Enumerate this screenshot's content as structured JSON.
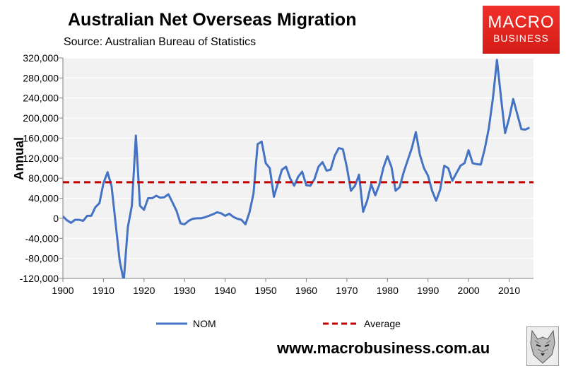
{
  "header": {
    "title": "Australian Net Overseas Migration",
    "subtitle": "Source: Australian Bureau of Statistics"
  },
  "brand": {
    "line1": "MACRO",
    "line2": "BUSINESS"
  },
  "footer": {
    "url": "www.macrobusiness.com.au"
  },
  "logo": {
    "icon": "wolf-head-icon"
  },
  "colors": {
    "series_line": "#4472C4",
    "average_line": "#C00000",
    "plot_bg": "#F2F2F2",
    "brand_bg": "#E8241E"
  },
  "chart_data": {
    "type": "line",
    "title": "Australian Net Overseas Migration",
    "subtitle": "Source: Australian Bureau of Statistics",
    "xlabel": "",
    "ylabel": "Annual",
    "xlim": [
      1900,
      2016
    ],
    "ylim": [
      -120000,
      320000
    ],
    "xticks": [
      1900,
      1910,
      1920,
      1930,
      1940,
      1950,
      1960,
      1970,
      1980,
      1990,
      2000,
      2010
    ],
    "xtick_labels": [
      "1900",
      "1910",
      "1920",
      "1930",
      "1940",
      "1950",
      "1960",
      "1970",
      "1980",
      "1990",
      "2000",
      "2010"
    ],
    "yticks": [
      -120000,
      -80000,
      -40000,
      0,
      40000,
      80000,
      120000,
      160000,
      200000,
      240000,
      280000,
      320000
    ],
    "ytick_labels": [
      "-120,000",
      "-80,000",
      "-40,000",
      "0",
      "40,000",
      "80,000",
      "120,000",
      "160,000",
      "200,000",
      "240,000",
      "280,000",
      "320,000"
    ],
    "grid": "horizontal",
    "legend_position": "bottom",
    "series": [
      {
        "name": "NOM",
        "style": "solid",
        "x": [
          1900,
          1901,
          1902,
          1903,
          1904,
          1905,
          1906,
          1907,
          1908,
          1909,
          1910,
          1911,
          1912,
          1913,
          1914,
          1915,
          1916,
          1917,
          1918,
          1919,
          1920,
          1921,
          1922,
          1923,
          1924,
          1925,
          1926,
          1927,
          1928,
          1929,
          1930,
          1931,
          1932,
          1933,
          1934,
          1935,
          1936,
          1937,
          1938,
          1939,
          1940,
          1941,
          1942,
          1943,
          1944,
          1945,
          1946,
          1947,
          1948,
          1949,
          1950,
          1951,
          1952,
          1953,
          1954,
          1955,
          1956,
          1957,
          1958,
          1959,
          1960,
          1961,
          1962,
          1963,
          1964,
          1965,
          1966,
          1967,
          1968,
          1969,
          1970,
          1971,
          1972,
          1973,
          1974,
          1975,
          1976,
          1977,
          1978,
          1979,
          1980,
          1981,
          1982,
          1983,
          1984,
          1985,
          1986,
          1987,
          1988,
          1989,
          1990,
          1991,
          1992,
          1993,
          1994,
          1995,
          1996,
          1997,
          1998,
          1999,
          2000,
          2001,
          2002,
          2003,
          2004,
          2005,
          2006,
          2007,
          2008,
          2009,
          2010,
          2011,
          2012,
          2013,
          2014,
          2015
        ],
        "values": [
          4000,
          -4000,
          -9000,
          -3000,
          -3000,
          -5000,
          5000,
          5000,
          22000,
          30000,
          70000,
          92000,
          64000,
          -10000,
          -85000,
          -125000,
          -18000,
          25000,
          165000,
          25000,
          17000,
          40000,
          40000,
          45000,
          41000,
          42000,
          48000,
          32000,
          15000,
          -10000,
          -12000,
          -5000,
          -1000,
          0,
          0,
          2000,
          5000,
          8000,
          12000,
          10000,
          5000,
          9000,
          3000,
          -1000,
          -3000,
          -12000,
          12000,
          50000,
          148000,
          153000,
          110000,
          100000,
          43000,
          70000,
          97000,
          103000,
          80000,
          65000,
          83000,
          93000,
          66000,
          65000,
          78000,
          103000,
          112000,
          95000,
          97000,
          125000,
          140000,
          138000,
          102000,
          55000,
          65000,
          87000,
          13000,
          35000,
          68000,
          46000,
          67000,
          101000,
          124000,
          102000,
          55000,
          62000,
          92000,
          116000,
          140000,
          172000,
          127000,
          100000,
          85000,
          55000,
          35000,
          57000,
          105000,
          100000,
          75000,
          90000,
          105000,
          110000,
          136000,
          110000,
          108000,
          107000,
          139000,
          180000,
          240000,
          316000,
          240000,
          170000,
          200000,
          238000,
          208000,
          178000,
          177000,
          181000
        ]
      },
      {
        "name": "Average",
        "style": "dashed",
        "x": [
          1900,
          2016
        ],
        "values": [
          72000,
          72000
        ]
      }
    ]
  }
}
